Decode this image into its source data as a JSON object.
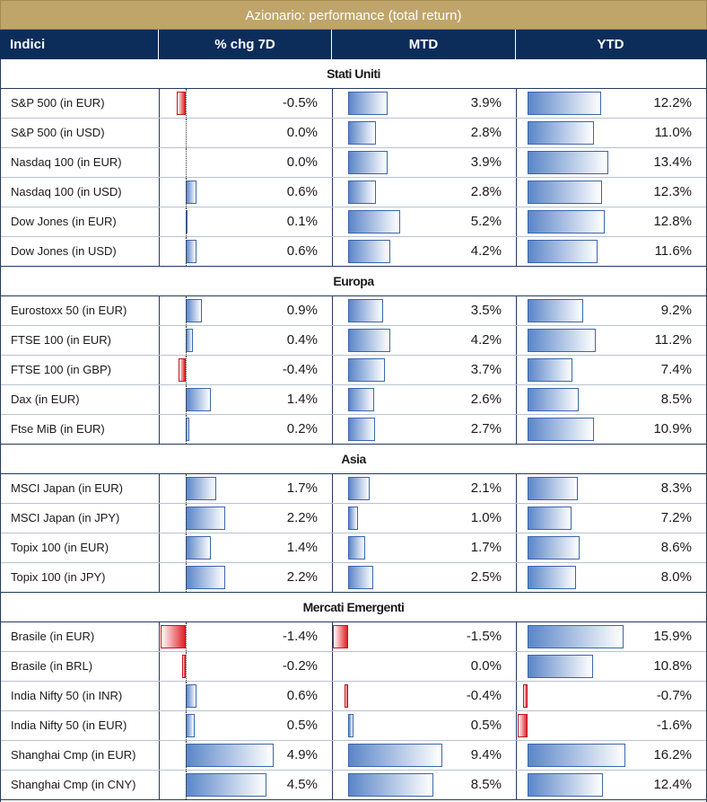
{
  "title": "Azionario: performance (total return)",
  "headers": {
    "name": "Indici",
    "chg7d": "% chg 7D",
    "mtd": "MTD",
    "ytd": "YTD"
  },
  "colors": {
    "title_bg": "#bfa56a",
    "header_bg": "#0c2c5a",
    "positive": "#5b86c8",
    "negative": "#e0202a"
  },
  "groups": [
    {
      "title": "Stati Uniti",
      "rows": [
        {
          "name": "S&P 500 (in EUR)",
          "chg7d": -0.5,
          "mtd": 3.9,
          "ytd": 12.2
        },
        {
          "name": "S&P 500 (in USD)",
          "chg7d": 0.0,
          "mtd": 2.8,
          "ytd": 11.0
        },
        {
          "name": "Nasdaq 100 (in EUR)",
          "chg7d": 0.0,
          "mtd": 3.9,
          "ytd": 13.4
        },
        {
          "name": "Nasdaq 100 (in USD)",
          "chg7d": 0.6,
          "mtd": 2.8,
          "ytd": 12.3
        },
        {
          "name": "Dow Jones (in EUR)",
          "chg7d": 0.1,
          "mtd": 5.2,
          "ytd": 12.8
        },
        {
          "name": "Dow Jones (in USD)",
          "chg7d": 0.6,
          "mtd": 4.2,
          "ytd": 11.6
        }
      ]
    },
    {
      "title": "Europa",
      "rows": [
        {
          "name": "Eurostoxx 50 (in EUR)",
          "chg7d": 0.9,
          "mtd": 3.5,
          "ytd": 9.2
        },
        {
          "name": "FTSE 100 (in EUR)",
          "chg7d": 0.4,
          "mtd": 4.2,
          "ytd": 11.2
        },
        {
          "name": "FTSE 100 (in GBP)",
          "chg7d": -0.4,
          "mtd": 3.7,
          "ytd": 7.4
        },
        {
          "name": "Dax (in EUR)",
          "chg7d": 1.4,
          "mtd": 2.6,
          "ytd": 8.5
        },
        {
          "name": "Ftse MiB (in EUR)",
          "chg7d": 0.2,
          "mtd": 2.7,
          "ytd": 10.9
        }
      ]
    },
    {
      "title": "Asia",
      "rows": [
        {
          "name": "MSCI Japan (in EUR)",
          "chg7d": 1.7,
          "mtd": 2.1,
          "ytd": 8.3
        },
        {
          "name": "MSCI Japan (in JPY)",
          "chg7d": 2.2,
          "mtd": 1.0,
          "ytd": 7.2
        },
        {
          "name": "Topix 100 (in EUR)",
          "chg7d": 1.4,
          "mtd": 1.7,
          "ytd": 8.6
        },
        {
          "name": "Topix 100 (in JPY)",
          "chg7d": 2.2,
          "mtd": 2.5,
          "ytd": 8.0
        }
      ]
    },
    {
      "title": "Mercati Emergenti",
      "rows": [
        {
          "name": "Brasile (in EUR)",
          "chg7d": -1.4,
          "mtd": -1.5,
          "ytd": 15.9
        },
        {
          "name": "Brasile (in BRL)",
          "chg7d": -0.2,
          "mtd": 0.0,
          "ytd": 10.8
        },
        {
          "name": "India Nifty 50 (in INR)",
          "chg7d": 0.6,
          "mtd": -0.4,
          "ytd": -0.7
        },
        {
          "name": "India Nifty 50 (in EUR)",
          "chg7d": 0.5,
          "mtd": 0.5,
          "ytd": -1.6
        },
        {
          "name": "Shanghai Cmp (in EUR)",
          "chg7d": 4.9,
          "mtd": 9.4,
          "ytd": 16.2
        },
        {
          "name": "Shanghai Cmp (in CNY)",
          "chg7d": 4.5,
          "mtd": 8.5,
          "ytd": 12.4
        }
      ]
    }
  ]
}
